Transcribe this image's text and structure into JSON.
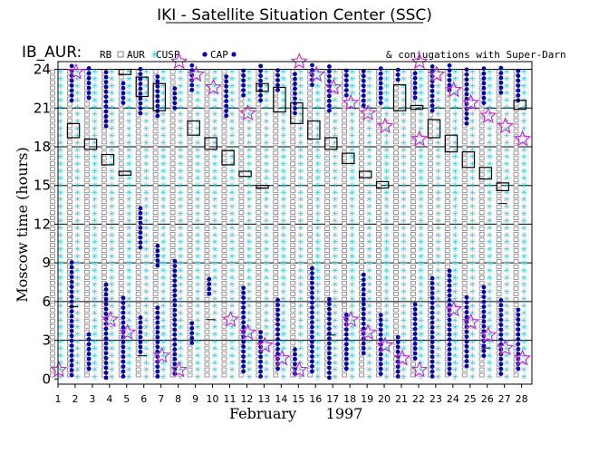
{
  "chart_data": {
    "type": "scatter",
    "title": "IKI - Satellite Situation Center (SSC)",
    "satellite_label": "IB_AUR:",
    "conjugation_note": "& conjugations with Super-Darn",
    "legend": [
      {
        "name": "RB",
        "marker": "none",
        "color": "#000000"
      },
      {
        "name": "AUR",
        "marker": "open-square",
        "color": "#808080"
      },
      {
        "name": "CUSP",
        "marker": "cyan-star",
        "color": "#22c4d4"
      },
      {
        "name": "CAP",
        "marker": "filled-circle",
        "color": "#0000cc"
      }
    ],
    "xlabel_month": "February",
    "xlabel_year": "1997",
    "ylabel": "Moscow time (hours)",
    "x_ticks": [
      1,
      2,
      3,
      4,
      5,
      6,
      7,
      8,
      9,
      10,
      11,
      12,
      13,
      14,
      15,
      16,
      17,
      18,
      19,
      20,
      21,
      22,
      23,
      24,
      25,
      26,
      27,
      28
    ],
    "y_ticks": [
      0,
      3,
      6,
      9,
      12,
      15,
      18,
      21,
      24
    ],
    "xlim": [
      1,
      28.6
    ],
    "ylim": [
      -0.4,
      24.6
    ],
    "conjugations": [
      {
        "day": 2,
        "start": 18.7,
        "end": 19.8
      },
      {
        "day": 3,
        "start": 17.8,
        "end": 18.6
      },
      {
        "day": 4,
        "start": 16.6,
        "end": 17.4
      },
      {
        "day": 5,
        "start": 15.8,
        "end": 16.1
      },
      {
        "day": 5,
        "start": 23.6,
        "end": 24.0
      },
      {
        "day": 6,
        "start": 21.9,
        "end": 23.4
      },
      {
        "day": 7,
        "start": 20.8,
        "end": 22.9
      },
      {
        "day": 9,
        "start": 18.9,
        "end": 20.0
      },
      {
        "day": 10,
        "start": 17.8,
        "end": 18.7
      },
      {
        "day": 11,
        "start": 16.6,
        "end": 17.7
      },
      {
        "day": 12,
        "start": 15.7,
        "end": 16.1
      },
      {
        "day": 13,
        "start": 14.9,
        "end": 15.0
      },
      {
        "day": 13,
        "start": 22.3,
        "end": 22.9
      },
      {
        "day": 14,
        "start": 20.7,
        "end": 22.6
      },
      {
        "day": 15,
        "start": 19.8,
        "end": 21.4
      },
      {
        "day": 16,
        "start": 18.6,
        "end": 20.0
      },
      {
        "day": 17,
        "start": 17.8,
        "end": 18.7
      },
      {
        "day": 18,
        "start": 16.7,
        "end": 17.5
      },
      {
        "day": 19,
        "start": 15.6,
        "end": 16.1
      },
      {
        "day": 20,
        "start": 14.8,
        "end": 15.3
      },
      {
        "day": 21,
        "start": 20.8,
        "end": 22.8
      },
      {
        "day": 22,
        "start": 20.9,
        "end": 21.2
      },
      {
        "day": 23,
        "start": 18.7,
        "end": 20.1
      },
      {
        "day": 24,
        "start": 17.6,
        "end": 18.9
      },
      {
        "day": 25,
        "start": 16.4,
        "end": 17.6
      },
      {
        "day": 26,
        "start": 15.5,
        "end": 16.4
      },
      {
        "day": 27,
        "start": 14.6,
        "end": 15.2
      },
      {
        "day": 28,
        "start": 20.9,
        "end": 21.6
      }
    ],
    "rb_marks": [
      {
        "day": 2,
        "time": 5.6
      },
      {
        "day": 6,
        "time": 1.8
      },
      {
        "day": 10,
        "time": 4.6
      },
      {
        "day": 13,
        "time": 14.8
      },
      {
        "day": 17,
        "time": 3.4
      },
      {
        "day": 26,
        "time": 2.4
      },
      {
        "day": 27,
        "time": 13.6
      }
    ],
    "cap_segments": [
      {
        "day": 2,
        "start": 0.3,
        "end": 9.2
      },
      {
        "day": 2,
        "start": 21.6,
        "end": 24.4
      },
      {
        "day": 3,
        "start": 0.8,
        "end": 3.6
      },
      {
        "day": 3,
        "start": 21.8,
        "end": 24.3
      },
      {
        "day": 4,
        "start": 0.1,
        "end": 7.4
      },
      {
        "day": 4,
        "start": 19.6,
        "end": 24.1
      },
      {
        "day": 5,
        "start": 0.2,
        "end": 6.6
      },
      {
        "day": 5,
        "start": 21.4,
        "end": 23.2
      },
      {
        "day": 6,
        "start": 2.1,
        "end": 4.8
      },
      {
        "day": 6,
        "start": 10.2,
        "end": 13.4
      },
      {
        "day": 6,
        "start": 20.6,
        "end": 24.2
      },
      {
        "day": 7,
        "start": 0.2,
        "end": 5.8
      },
      {
        "day": 7,
        "start": 8.8,
        "end": 10.4
      },
      {
        "day": 7,
        "start": 20.4,
        "end": 23.8
      },
      {
        "day": 8,
        "start": 0.4,
        "end": 9.4
      },
      {
        "day": 8,
        "start": 21.0,
        "end": 22.6
      },
      {
        "day": 9,
        "start": 22.4,
        "end": 24.4
      },
      {
        "day": 9,
        "start": 2.8,
        "end": 4.4
      },
      {
        "day": 10,
        "start": 6.6,
        "end": 7.8
      },
      {
        "day": 11,
        "start": 20.4,
        "end": 23.6
      },
      {
        "day": 12,
        "start": 0.6,
        "end": 7.2
      },
      {
        "day": 12,
        "start": 22.0,
        "end": 24.2
      },
      {
        "day": 13,
        "start": 0.2,
        "end": 3.8
      },
      {
        "day": 13,
        "start": 21.6,
        "end": 24.3
      },
      {
        "day": 14,
        "start": 0.8,
        "end": 6.2
      },
      {
        "day": 14,
        "start": 22.4,
        "end": 24.2
      },
      {
        "day": 15,
        "start": 0.4,
        "end": 2.4
      },
      {
        "day": 15,
        "start": 20.6,
        "end": 24.0
      },
      {
        "day": 16,
        "start": 0.6,
        "end": 8.8
      },
      {
        "day": 16,
        "start": 22.8,
        "end": 24.4
      },
      {
        "day": 17,
        "start": 0.1,
        "end": 6.4
      },
      {
        "day": 17,
        "start": 20.8,
        "end": 24.3
      },
      {
        "day": 18,
        "start": 0.8,
        "end": 5.2
      },
      {
        "day": 18,
        "start": 22.0,
        "end": 24.0
      },
      {
        "day": 19,
        "start": 2.0,
        "end": 8.2
      },
      {
        "day": 19,
        "start": 21.2,
        "end": 24.2
      },
      {
        "day": 20,
        "start": 0.4,
        "end": 5.0
      },
      {
        "day": 20,
        "start": 21.4,
        "end": 24.1
      },
      {
        "day": 21,
        "start": 0.2,
        "end": 3.6
      },
      {
        "day": 21,
        "start": 23.2,
        "end": 24.3
      },
      {
        "day": 22,
        "start": 1.6,
        "end": 6.0
      },
      {
        "day": 22,
        "start": 21.8,
        "end": 24.0
      },
      {
        "day": 23,
        "start": 0.2,
        "end": 7.8
      },
      {
        "day": 23,
        "start": 20.8,
        "end": 24.4
      },
      {
        "day": 24,
        "start": 0.4,
        "end": 8.6
      },
      {
        "day": 24,
        "start": 22.4,
        "end": 24.3
      },
      {
        "day": 25,
        "start": 1.0,
        "end": 6.6
      },
      {
        "day": 25,
        "start": 19.8,
        "end": 24.2
      },
      {
        "day": 26,
        "start": 1.8,
        "end": 7.4
      },
      {
        "day": 26,
        "start": 21.4,
        "end": 24.2
      },
      {
        "day": 27,
        "start": 0.4,
        "end": 6.2
      },
      {
        "day": 27,
        "start": 22.2,
        "end": 24.3
      },
      {
        "day": 28,
        "start": 0.8,
        "end": 5.4
      },
      {
        "day": 28,
        "start": 21.6,
        "end": 24.2
      }
    ],
    "cap_stars": [
      {
        "day": 2,
        "time": 0.7
      },
      {
        "day": 3,
        "time": 23.8
      },
      {
        "day": 5,
        "time": 4.6
      },
      {
        "day": 6,
        "time": 3.6
      },
      {
        "day": 8,
        "time": 1.8
      },
      {
        "day": 9,
        "time": 0.7
      },
      {
        "day": 9,
        "time": 24.6
      },
      {
        "day": 10,
        "time": 23.6
      },
      {
        "day": 11,
        "time": 22.6
      },
      {
        "day": 12,
        "time": 4.6
      },
      {
        "day": 13,
        "time": 3.6
      },
      {
        "day": 13,
        "time": 20.6
      },
      {
        "day": 14,
        "time": 2.6
      },
      {
        "day": 15,
        "time": 1.6
      },
      {
        "day": 16,
        "time": 0.7
      },
      {
        "day": 16,
        "time": 24.6
      },
      {
        "day": 17,
        "time": 23.6
      },
      {
        "day": 18,
        "time": 22.6
      },
      {
        "day": 19,
        "time": 4.6
      },
      {
        "day": 19,
        "time": 21.4
      },
      {
        "day": 20,
        "time": 3.6
      },
      {
        "day": 20,
        "time": 20.6
      },
      {
        "day": 21,
        "time": 2.6
      },
      {
        "day": 21,
        "time": 19.6
      },
      {
        "day": 22,
        "time": 1.6
      },
      {
        "day": 23,
        "time": 0.7
      },
      {
        "day": 23,
        "time": 24.6
      },
      {
        "day": 23,
        "time": 18.6
      },
      {
        "day": 24,
        "time": 23.6
      },
      {
        "day": 25,
        "time": 5.4
      },
      {
        "day": 25,
        "time": 22.4
      },
      {
        "day": 26,
        "time": 4.4
      },
      {
        "day": 26,
        "time": 21.4
      },
      {
        "day": 27,
        "time": 3.4
      },
      {
        "day": 27,
        "time": 20.4
      },
      {
        "day": 28,
        "time": 2.4
      },
      {
        "day": 28,
        "time": 19.6
      },
      {
        "day": 29,
        "time": 1.6
      },
      {
        "day": 29,
        "time": 18.6
      }
    ]
  },
  "colors": {
    "cusp": "#22c4d4",
    "aur": "#808080",
    "cap": "#0000cc",
    "star": "#d020d0",
    "frame": "#000000"
  }
}
